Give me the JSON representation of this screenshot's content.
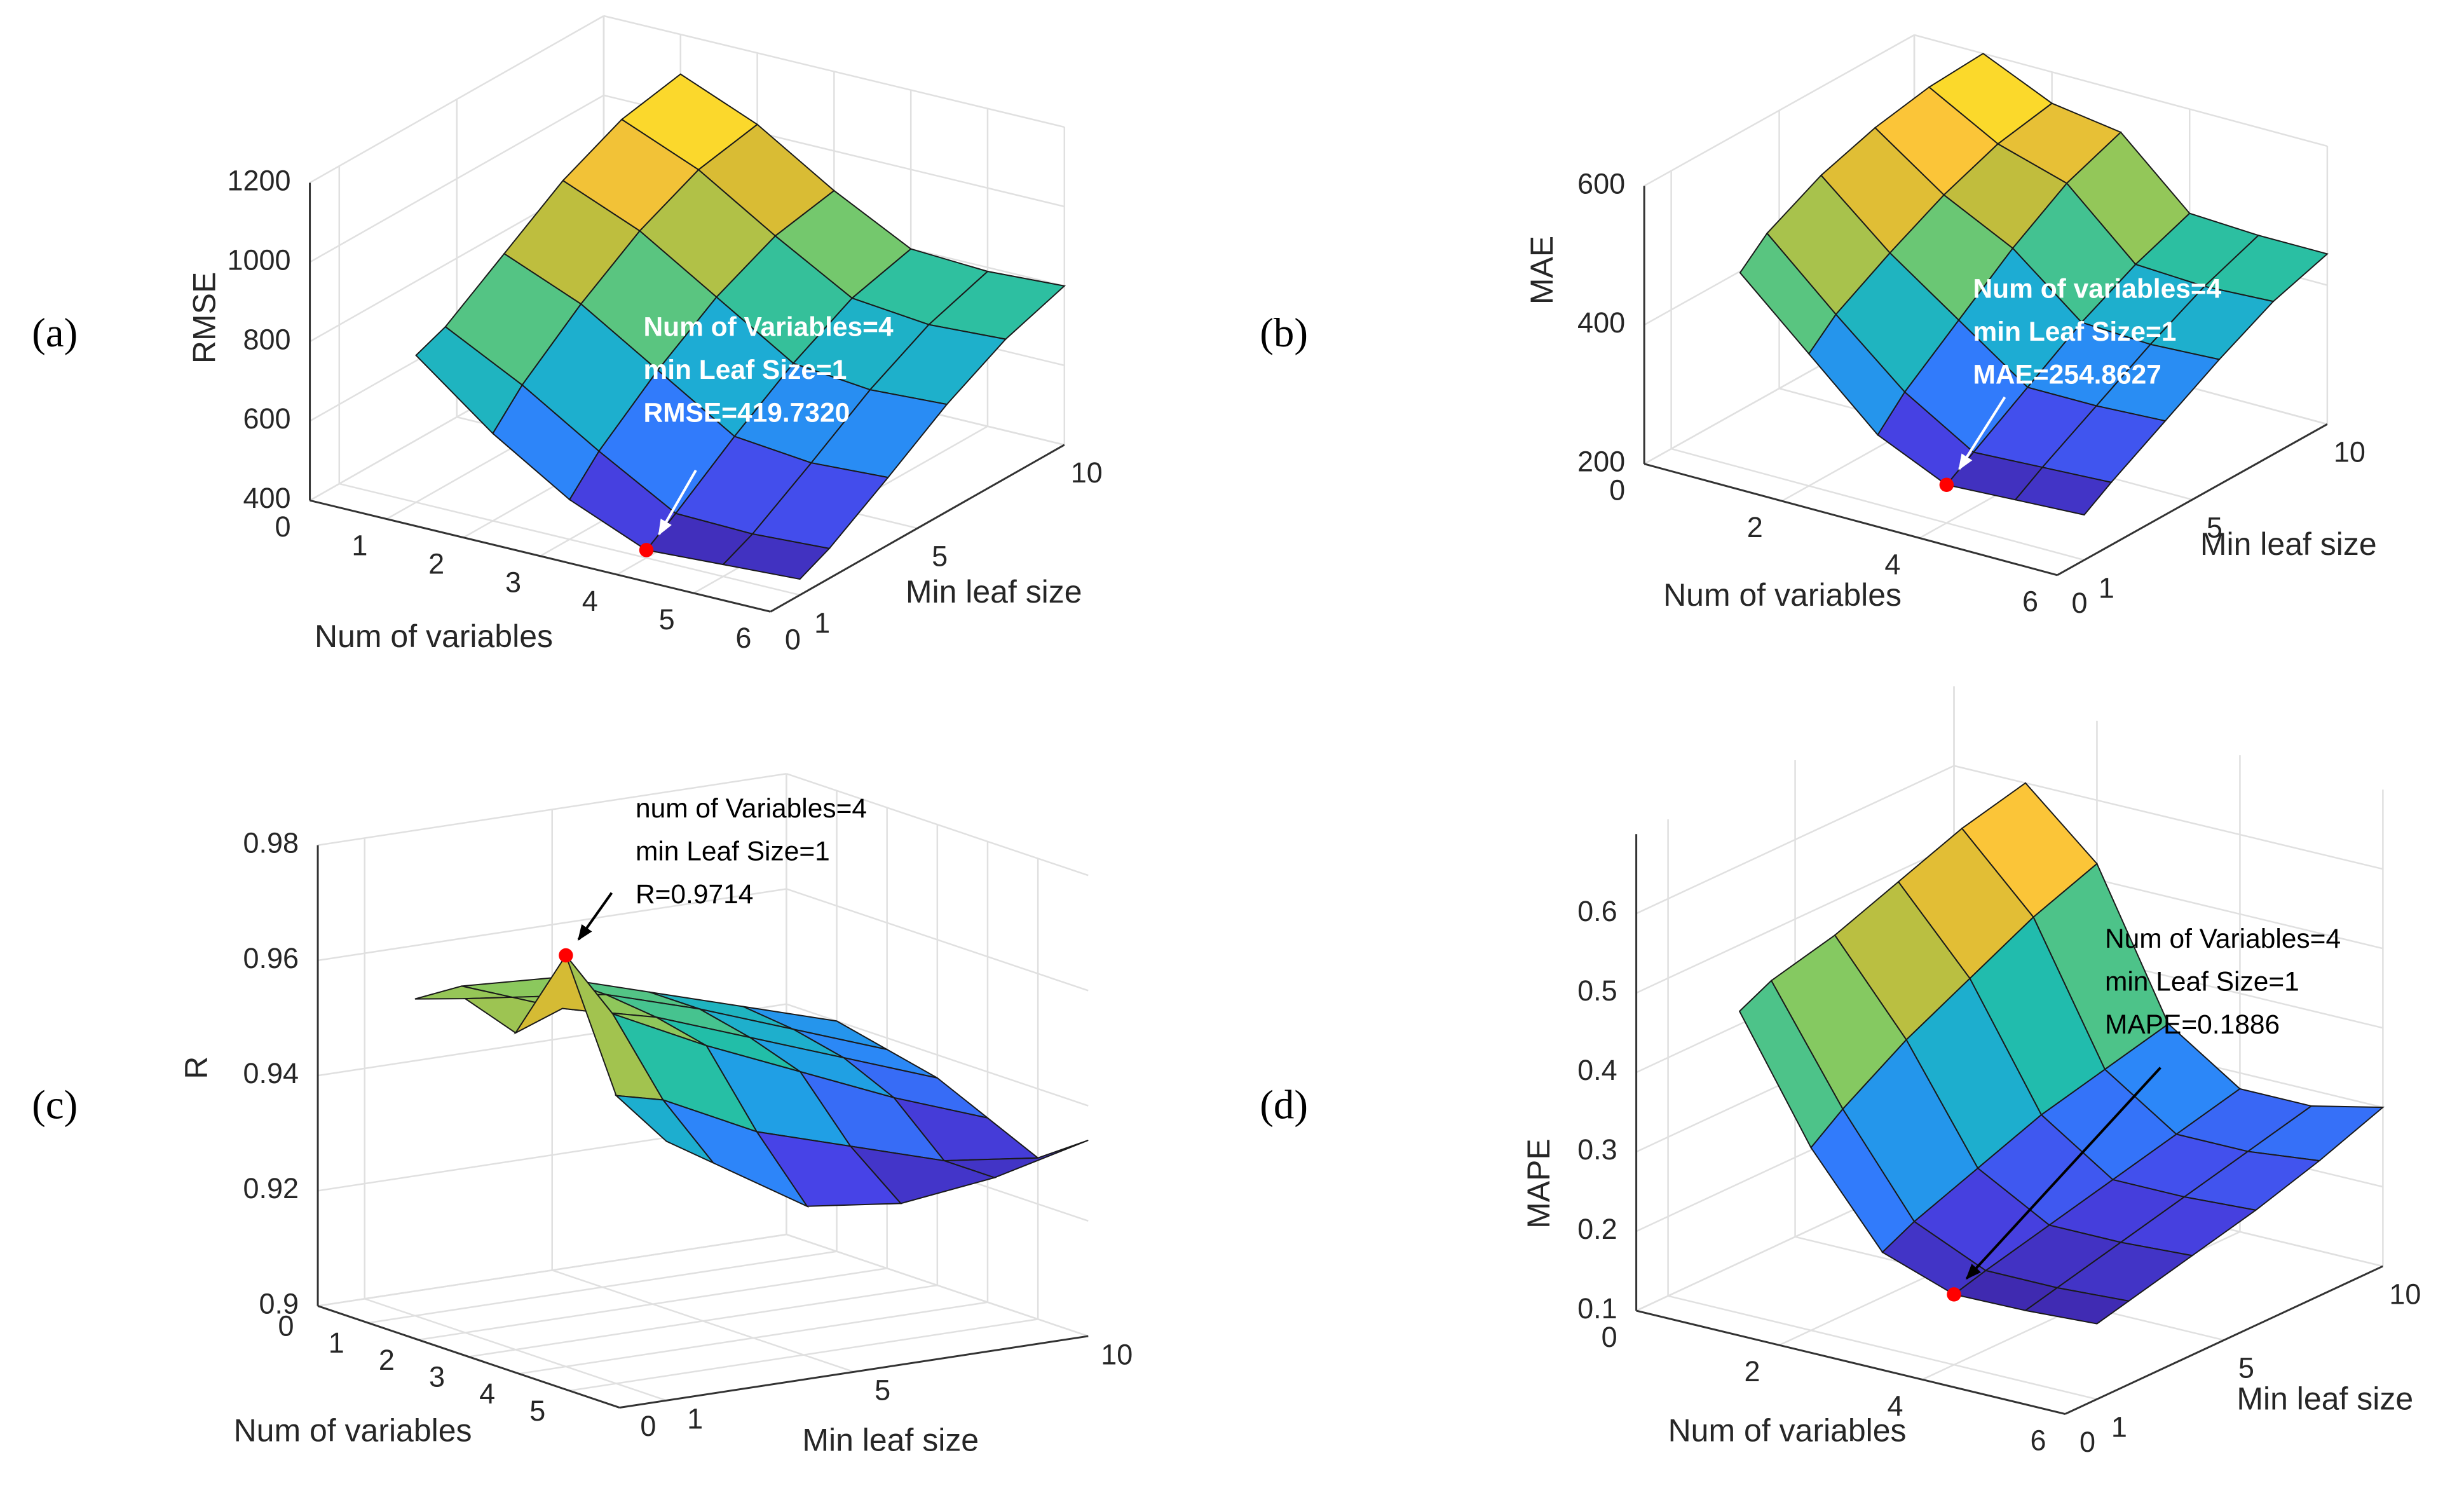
{
  "chart_data": [
    {
      "type": "surface",
      "panel_label": "(a)",
      "xlabel": "Num of variables",
      "ylabel": "Min leaf size",
      "zlabel": "RMSE",
      "x": [
        1,
        2,
        3,
        4,
        5,
        6
      ],
      "y": [
        1,
        2,
        4,
        6,
        8,
        10
      ],
      "z": [
        [
          770,
          800,
          900,
          1000,
          1070,
          1100
        ],
        [
          620,
          700,
          820,
          920,
          990,
          1020
        ],
        [
          500,
          580,
          700,
          800,
          870,
          900
        ],
        [
          419.732,
          470,
          580,
          680,
          760,
          800
        ],
        [
          430,
          465,
          560,
          660,
          740,
          790
        ],
        [
          440,
          475,
          570,
          670,
          750,
          800
        ]
      ],
      "xlim": [
        0,
        6
      ],
      "ylim": [
        0,
        10
      ],
      "zlim": [
        400,
        1200
      ],
      "xticks": [
        0,
        1,
        2,
        3,
        4,
        5,
        6
      ],
      "yticks": [
        0,
        1,
        5,
        10
      ],
      "zticks": [
        400,
        600,
        800,
        1000,
        1200
      ],
      "grid": true,
      "colormap": [
        "#3e26a8",
        "#4744e9",
        "#2f80fd",
        "#1ca8dd",
        "#21bea9",
        "#82ca63",
        "#d1ba33",
        "#fcc538",
        "#f9fb15"
      ],
      "marker": {
        "x": 4,
        "y": 1,
        "color": "#ff0000"
      },
      "annotation": {
        "lines": [
          "Num of Variables=4",
          "min Leaf Size=1",
          "RMSE=419.7320"
        ],
        "color": "#ffffff",
        "bold": true
      }
    },
    {
      "type": "surface",
      "panel_label": "(b)",
      "xlabel": "Num of variables",
      "ylabel": "Min leaf size",
      "zlabel": "MAE",
      "x": [
        1,
        2,
        3,
        4,
        5,
        6
      ],
      "y": [
        1,
        2,
        4,
        6,
        8,
        10
      ],
      "z": [
        [
          480,
          515,
          555,
          580,
          595,
          600
        ],
        [
          390,
          425,
          470,
          510,
          540,
          555
        ],
        [
          300,
          340,
          400,
          460,
          510,
          540
        ],
        [
          254.8627,
          280,
          330,
          380,
          420,
          450
        ],
        [
          260,
          285,
          330,
          375,
          415,
          445
        ],
        [
          265,
          290,
          335,
          380,
          420,
          445
        ]
      ],
      "xlim": [
        0,
        6
      ],
      "ylim": [
        0,
        10
      ],
      "zlim": [
        200,
        600
      ],
      "xticks": [
        0,
        2,
        4,
        6
      ],
      "yticks": [
        0,
        1,
        5,
        10
      ],
      "zticks": [
        200,
        400,
        600
      ],
      "grid": true,
      "colormap": [
        "#3e26a8",
        "#4744e9",
        "#2f80fd",
        "#1ca8dd",
        "#21bea9",
        "#82ca63",
        "#d1ba33",
        "#fcc538",
        "#f9fb15"
      ],
      "marker": {
        "x": 4,
        "y": 1,
        "color": "#ff0000"
      },
      "annotation": {
        "lines": [
          "Num of variables=4",
          "min Leaf Size=1",
          "MAE=254.8627"
        ],
        "color": "#ffffff",
        "bold": true
      }
    },
    {
      "type": "surface",
      "panel_label": "(c)",
      "xlabel": "Num of variables",
      "ylabel": "Min leaf size",
      "zlabel": "R",
      "x": [
        1,
        2,
        3,
        4,
        5,
        6
      ],
      "y": [
        1,
        2,
        4,
        6,
        8,
        10
      ],
      "z": [
        [
          0.955,
          0.956,
          0.955,
          0.95,
          0.945,
          0.94
        ],
        [
          0.958,
          0.957,
          0.955,
          0.95,
          0.944,
          0.938
        ],
        [
          0.955,
          0.958,
          0.954,
          0.948,
          0.942,
          0.936
        ],
        [
          0.9714,
          0.96,
          0.952,
          0.945,
          0.938,
          0.932
        ],
        [
          0.95,
          0.948,
          0.94,
          0.935,
          0.93,
          0.928
        ],
        [
          0.945,
          0.94,
          0.93,
          0.928,
          0.93,
          0.934
        ]
      ],
      "xlim": [
        0,
        6
      ],
      "ylim": [
        0,
        10
      ],
      "zlim": [
        0.9,
        0.98
      ],
      "xticks": [
        0,
        1,
        2,
        3,
        4,
        5
      ],
      "yticks": [
        0,
        1,
        5,
        10
      ],
      "zticks": [
        0.9,
        0.92,
        0.94,
        0.96,
        0.98
      ],
      "grid": true,
      "colormap": [
        "#3e26a8",
        "#4744e9",
        "#2f80fd",
        "#1ca8dd",
        "#21bea9",
        "#82ca63",
        "#d1ba33",
        "#fcc538",
        "#f9fb15"
      ],
      "marker": {
        "x": 4,
        "y": 1,
        "color": "#ff0000"
      },
      "annotation": {
        "lines": [
          "num of Variables=4",
          "min Leaf Size=1",
          "R=0.9714"
        ],
        "color": "#000000",
        "bold": false
      }
    },
    {
      "type": "surface",
      "panel_label": "(d)",
      "xlabel": "Num of variables",
      "ylabel": "Min leaf size",
      "zlabel": "MAPE",
      "x": [
        1,
        2,
        3,
        4,
        5,
        6
      ],
      "y": [
        1,
        2,
        4,
        6,
        8,
        10
      ],
      "z": [
        [
          0.48,
          0.5,
          0.52,
          0.55,
          0.58,
          0.6
        ],
        [
          0.33,
          0.36,
          0.41,
          0.45,
          0.49,
          0.52
        ],
        [
          0.22,
          0.24,
          0.27,
          0.3,
          0.32,
          0.34
        ],
        [
          0.1886,
          0.2,
          0.22,
          0.24,
          0.26,
          0.28
        ],
        [
          0.19,
          0.2,
          0.22,
          0.24,
          0.26,
          0.28
        ],
        [
          0.195,
          0.205,
          0.225,
          0.245,
          0.27,
          0.3
        ]
      ],
      "xlim": [
        0,
        6
      ],
      "ylim": [
        0,
        10
      ],
      "zlim": [
        0.1,
        0.7
      ],
      "xticks": [
        0,
        2,
        4,
        6
      ],
      "yticks": [
        0,
        1,
        5,
        10
      ],
      "zticks": [
        0.1,
        0.2,
        0.3,
        0.4,
        0.5,
        0.6
      ],
      "grid": true,
      "colormap": [
        "#3e26a8",
        "#4744e9",
        "#2f80fd",
        "#1ca8dd",
        "#21bea9",
        "#82ca63",
        "#d1ba33",
        "#fcc538",
        "#f9fb15"
      ],
      "marker": {
        "x": 4,
        "y": 1,
        "color": "#ff0000"
      },
      "annotation": {
        "lines": [
          "Num of Variables=4",
          "min Leaf Size=1",
          "MAPE=0.1886"
        ],
        "color": "#000000",
        "bold": false
      }
    }
  ]
}
